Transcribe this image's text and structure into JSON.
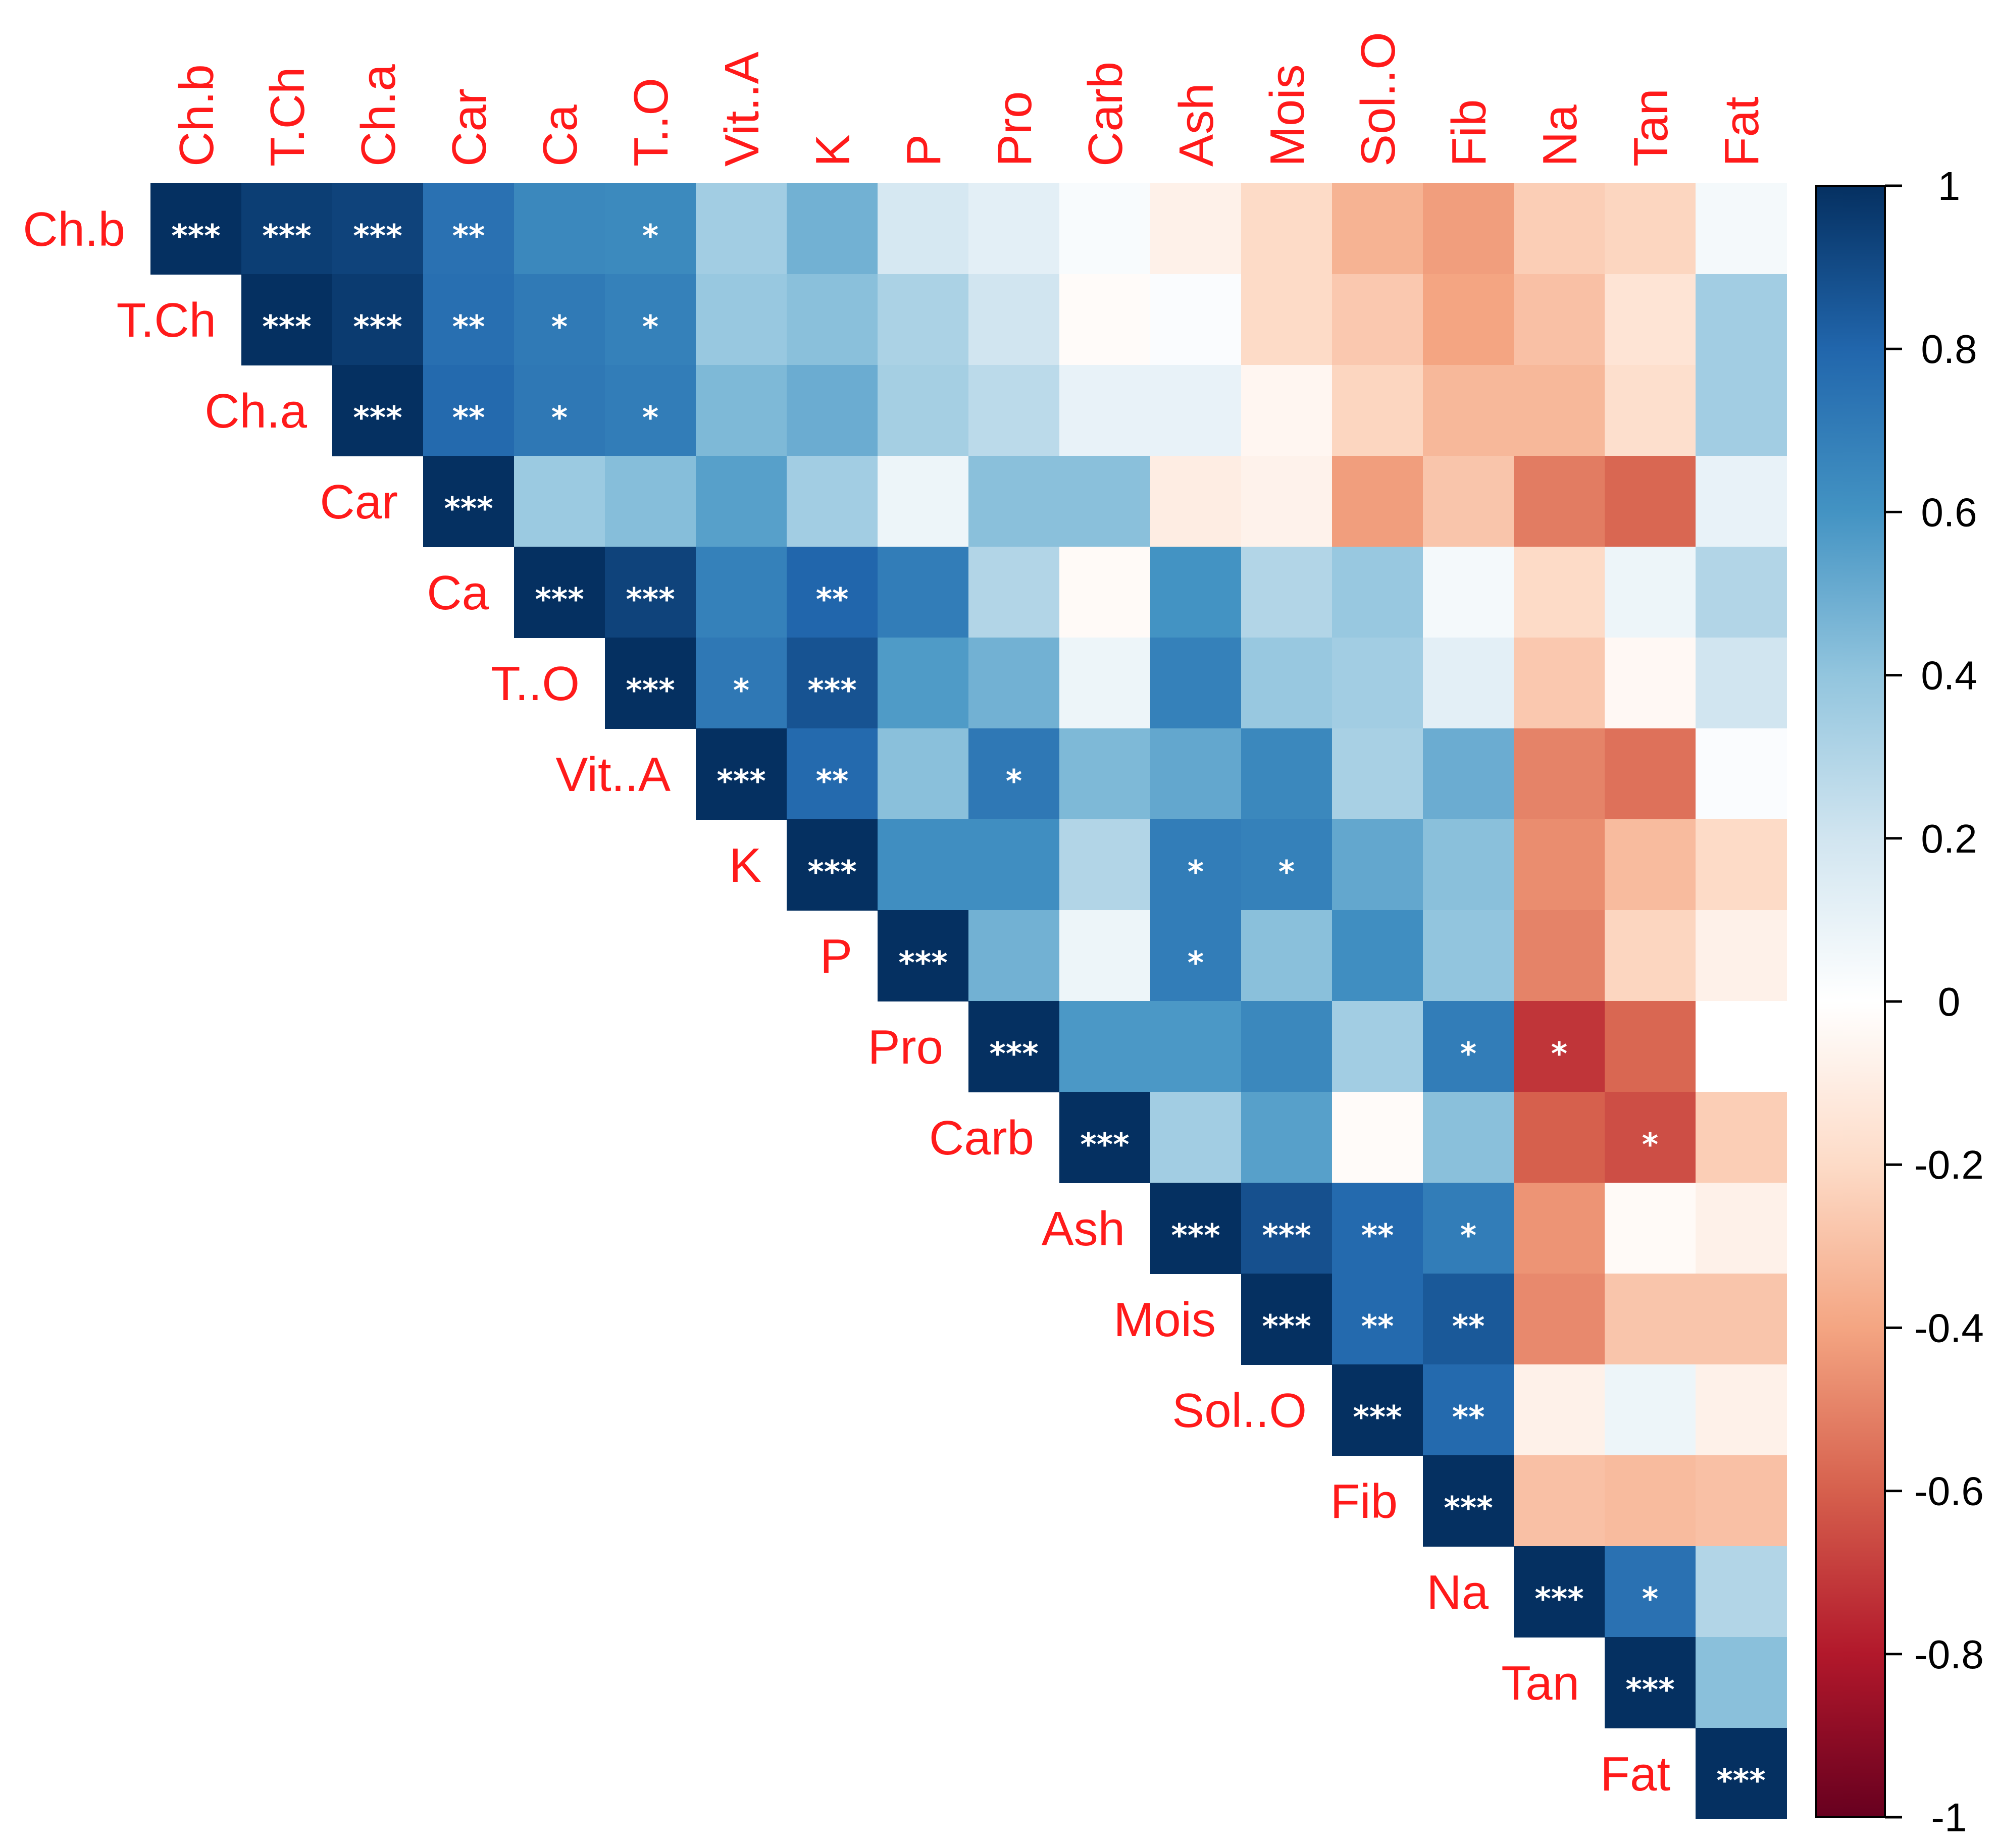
{
  "chart_data": {
    "type": "heatmap",
    "title": "",
    "layout": "upper-triangle correlation matrix",
    "variables": [
      "Ch.b",
      "T.Ch",
      "Ch.a",
      "Car",
      "Ca",
      "T..O",
      "Vit..A",
      "K",
      "P",
      "Pro",
      "Carb",
      "Ash",
      "Mois",
      "Sol..O",
      "Fib",
      "Na",
      "Tan",
      "Fat"
    ],
    "matrix": [
      [
        1,
        0.95,
        0.93,
        0.75,
        0.65,
        0.64,
        0.35,
        0.48,
        0.18,
        0.12,
        0.03,
        -0.08,
        -0.2,
        -0.35,
        -0.42,
        -0.25,
        -0.22,
        0.05
      ],
      [
        0.95,
        1,
        0.96,
        0.76,
        0.71,
        0.68,
        0.38,
        0.42,
        0.32,
        0.2,
        -0.02,
        0.02,
        -0.2,
        -0.27,
        -0.4,
        -0.3,
        -0.15,
        0.35
      ],
      [
        0.93,
        0.96,
        1,
        0.78,
        0.72,
        0.7,
        0.45,
        0.5,
        0.34,
        0.27,
        0.1,
        0.1,
        -0.05,
        -0.22,
        -0.33,
        -0.33,
        -0.18,
        0.35
      ],
      [
        0.75,
        0.76,
        0.78,
        1,
        0.37,
        0.43,
        0.55,
        0.35,
        0.08,
        0.42,
        0.42,
        -0.1,
        -0.07,
        -0.42,
        -0.28,
        -0.52,
        -0.58,
        0.1
      ],
      [
        0.65,
        0.71,
        0.72,
        0.37,
        1,
        0.93,
        0.68,
        0.8,
        0.7,
        0.3,
        -0.03,
        0.6,
        0.3,
        0.38,
        0.05,
        -0.2,
        0.08,
        0.3
      ],
      [
        0.64,
        0.68,
        0.7,
        0.43,
        0.93,
        1,
        0.72,
        0.87,
        0.57,
        0.48,
        0.08,
        0.68,
        0.38,
        0.35,
        0.12,
        -0.27,
        -0.04,
        0.2
      ],
      [
        0.35,
        0.38,
        0.45,
        0.55,
        0.68,
        0.72,
        1,
        0.78,
        0.42,
        0.72,
        0.45,
        0.52,
        0.65,
        0.33,
        0.5,
        -0.5,
        -0.55,
        0.02
      ],
      [
        0.48,
        0.42,
        0.5,
        0.35,
        0.8,
        0.87,
        0.78,
        1,
        0.62,
        0.62,
        0.3,
        0.7,
        0.68,
        0.52,
        0.42,
        -0.47,
        -0.32,
        -0.2
      ],
      [
        0.18,
        0.32,
        0.34,
        0.08,
        0.7,
        0.57,
        0.42,
        0.62,
        1,
        0.48,
        0.08,
        0.7,
        0.42,
        0.62,
        0.4,
        -0.5,
        -0.22,
        -0.08
      ],
      [
        0.12,
        0.2,
        0.27,
        0.42,
        0.3,
        0.48,
        0.72,
        0.62,
        0.48,
        1,
        0.58,
        0.58,
        0.65,
        0.35,
        0.7,
        -0.72,
        -0.58,
        0
      ],
      [
        0.03,
        -0.02,
        0.1,
        0.42,
        -0.03,
        0.08,
        0.45,
        0.3,
        0.08,
        0.58,
        1,
        0.35,
        0.55,
        -0.02,
        0.42,
        -0.6,
        -0.65,
        -0.25
      ],
      [
        -0.08,
        0.02,
        0.1,
        -0.1,
        0.6,
        0.68,
        0.52,
        0.7,
        0.7,
        0.58,
        0.35,
        1,
        0.88,
        0.78,
        0.7,
        -0.45,
        -0.03,
        -0.08
      ],
      [
        -0.2,
        -0.2,
        -0.05,
        -0.07,
        0.3,
        0.38,
        0.65,
        0.68,
        0.42,
        0.65,
        0.55,
        0.88,
        1,
        0.78,
        0.85,
        -0.48,
        -0.28,
        -0.28
      ],
      [
        -0.35,
        -0.27,
        -0.22,
        -0.42,
        0.38,
        0.35,
        0.33,
        0.52,
        0.62,
        0.35,
        -0.02,
        0.78,
        0.78,
        1,
        0.78,
        -0.08,
        0.08,
        -0.08
      ],
      [
        -0.42,
        -0.4,
        -0.33,
        -0.28,
        0.05,
        0.12,
        0.5,
        0.42,
        0.4,
        0.7,
        0.42,
        0.7,
        0.85,
        0.78,
        1,
        -0.3,
        -0.32,
        -0.3
      ],
      [
        -0.25,
        -0.3,
        -0.33,
        -0.52,
        -0.2,
        -0.27,
        -0.5,
        -0.47,
        -0.5,
        -0.72,
        -0.6,
        -0.45,
        -0.48,
        -0.08,
        -0.3,
        1,
        0.75,
        0.3
      ],
      [
        -0.22,
        -0.15,
        -0.18,
        -0.58,
        0.08,
        -0.04,
        -0.55,
        -0.32,
        -0.22,
        -0.58,
        -0.65,
        -0.03,
        -0.28,
        0.08,
        -0.32,
        0.75,
        1,
        0.42
      ],
      [
        0.05,
        0.35,
        0.35,
        0.1,
        0.3,
        0.2,
        0.02,
        -0.2,
        -0.08,
        0,
        -0.25,
        -0.08,
        -0.28,
        -0.08,
        -0.3,
        0.3,
        0.42,
        1
      ]
    ],
    "significance": [
      [
        "***",
        "***",
        "***",
        "**",
        "",
        "*",
        "",
        "",
        "",
        "",
        "",
        "",
        "",
        "",
        "",
        "",
        "",
        ""
      ],
      [
        "***",
        "***",
        "***",
        "**",
        "*",
        "*",
        "",
        "",
        "",
        "",
        "",
        "",
        "",
        "",
        "",
        "",
        "",
        ""
      ],
      [
        "***",
        "***",
        "***",
        "**",
        "*",
        "*",
        "",
        "",
        "",
        "",
        "",
        "",
        "",
        "",
        "",
        "",
        "",
        ""
      ],
      [
        "**",
        "**",
        "**",
        "***",
        "",
        "",
        "",
        "",
        "",
        "",
        "",
        "",
        "",
        "",
        "",
        "",
        "",
        ""
      ],
      [
        "",
        "*",
        "*",
        "",
        "***",
        "***",
        "",
        "**",
        "",
        "",
        "",
        "",
        "",
        "",
        "",
        "",
        "",
        ""
      ],
      [
        "*",
        "*",
        "*",
        "",
        "***",
        "***",
        "*",
        "***",
        "",
        "",
        "",
        "",
        "",
        "",
        "",
        "",
        "",
        ""
      ],
      [
        "",
        "",
        "",
        "",
        "",
        "*",
        "***",
        "**",
        "",
        "*",
        "",
        "",
        "",
        "",
        "",
        "",
        "",
        ""
      ],
      [
        "",
        "",
        "",
        "",
        "**",
        "***",
        "**",
        "***",
        "",
        "",
        "",
        "*",
        "*",
        "",
        "",
        "",
        "",
        ""
      ],
      [
        "",
        "",
        "",
        "",
        "",
        "",
        "",
        "",
        "***",
        "",
        "",
        "*",
        "",
        "",
        "",
        "",
        "",
        ""
      ],
      [
        "",
        "",
        "",
        "",
        "",
        "",
        "*",
        "",
        "",
        "***",
        "",
        "",
        "",
        "",
        "*",
        "*",
        "",
        ""
      ],
      [
        "",
        "",
        "",
        "",
        "",
        "",
        "",
        "",
        "",
        "",
        "***",
        "",
        "",
        "",
        "",
        "",
        "*",
        ""
      ],
      [
        "",
        "",
        "",
        "",
        "",
        "",
        "",
        "*",
        "*",
        "",
        "",
        "***",
        "***",
        "**",
        "*",
        "",
        "",
        ""
      ],
      [
        "",
        "",
        "",
        "",
        "",
        "",
        "",
        "*",
        "",
        "",
        "",
        "***",
        "***",
        "**",
        "**",
        "",
        "",
        ""
      ],
      [
        "",
        "",
        "",
        "",
        "",
        "",
        "",
        "",
        "",
        "",
        "",
        "**",
        "**",
        "***",
        "**",
        "",
        "",
        ""
      ],
      [
        "",
        "",
        "",
        "",
        "",
        "",
        "",
        "",
        "",
        "*",
        "",
        "*",
        "**",
        "**",
        "***",
        "",
        "",
        ""
      ],
      [
        "",
        "",
        "",
        "",
        "",
        "",
        "",
        "",
        "",
        "*",
        "",
        "",
        "",
        "",
        "",
        "***",
        "*",
        ""
      ],
      [
        "",
        "",
        "",
        "",
        "",
        "",
        "",
        "",
        "",
        "",
        "*",
        "",
        "",
        "",
        "",
        "*",
        "***",
        ""
      ],
      [
        "",
        "",
        "",
        "",
        "",
        "",
        "",
        "",
        "",
        "",
        "",
        "",
        "",
        "",
        "",
        "",
        "",
        "***"
      ]
    ],
    "colorbar": {
      "range": [
        -1,
        1
      ],
      "ticks": [
        "1",
        "0.8",
        "0.6",
        "0.4",
        "0.2",
        "0",
        "-0.2",
        "-0.4",
        "-0.6",
        "-0.8",
        "-1"
      ]
    },
    "colors": {
      "label": "#ff1a1a",
      "star": "#ffffff",
      "scale": [
        "#67001f",
        "#b2182b",
        "#d6604d",
        "#f4a582",
        "#fddbc7",
        "#ffffff",
        "#d1e5f0",
        "#92c5de",
        "#4393c3",
        "#2166ac",
        "#053061"
      ]
    }
  }
}
